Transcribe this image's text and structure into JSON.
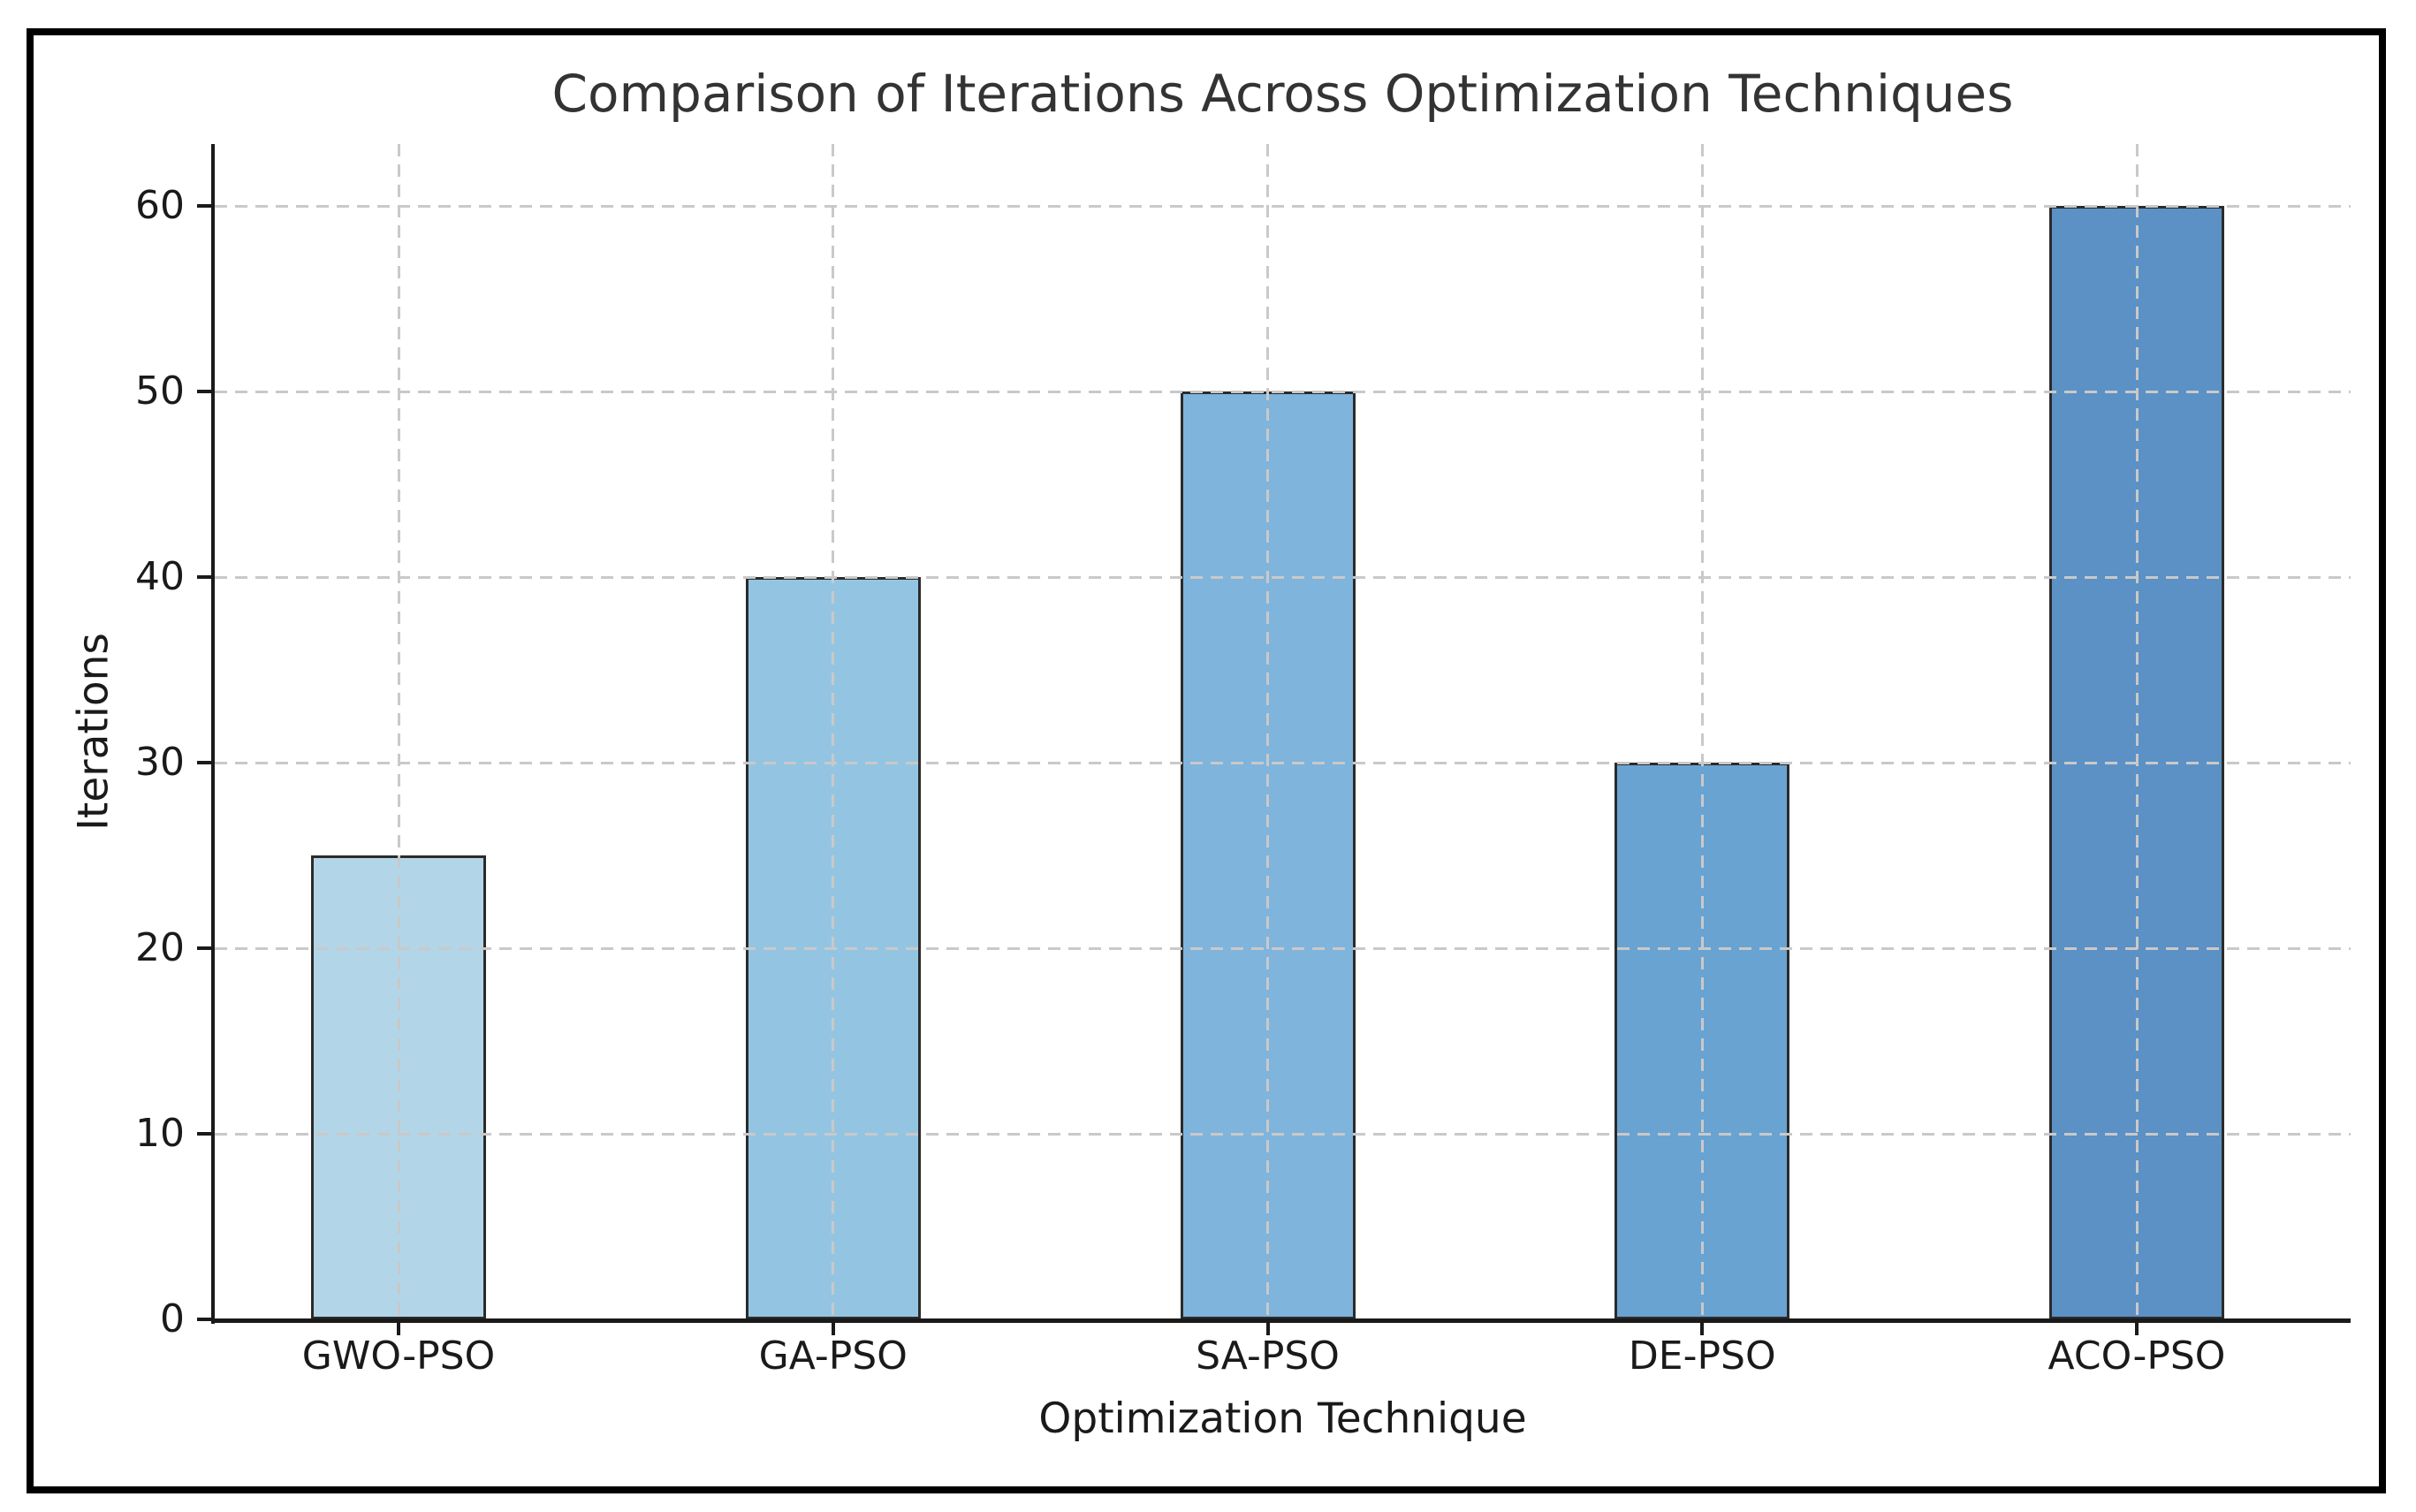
{
  "chart_data": {
    "type": "bar",
    "title": "Comparison of Iterations Across Optimization Techniques",
    "xlabel": "Optimization Technique",
    "ylabel": "Iterations",
    "categories": [
      "GWO-PSO",
      "GA-PSO",
      "SA-PSO",
      "DE-PSO",
      "ACO-PSO"
    ],
    "values": [
      25,
      40,
      50,
      30,
      60
    ],
    "yticks": [
      0,
      10,
      20,
      30,
      40,
      50,
      60
    ],
    "ylim": [
      0,
      63
    ],
    "bar_colors": [
      "#b3d5e8",
      "#93c5e3",
      "#7fb4dc",
      "#69a3d2",
      "#5b91c5"
    ],
    "bar_edge_color": "#2b2b2b",
    "axis_color": "#1a1a1a",
    "grid": true,
    "grid_style": "dashed",
    "grid_color": "#c9c9c9",
    "title_color": "#333333",
    "legend_position": "none"
  }
}
